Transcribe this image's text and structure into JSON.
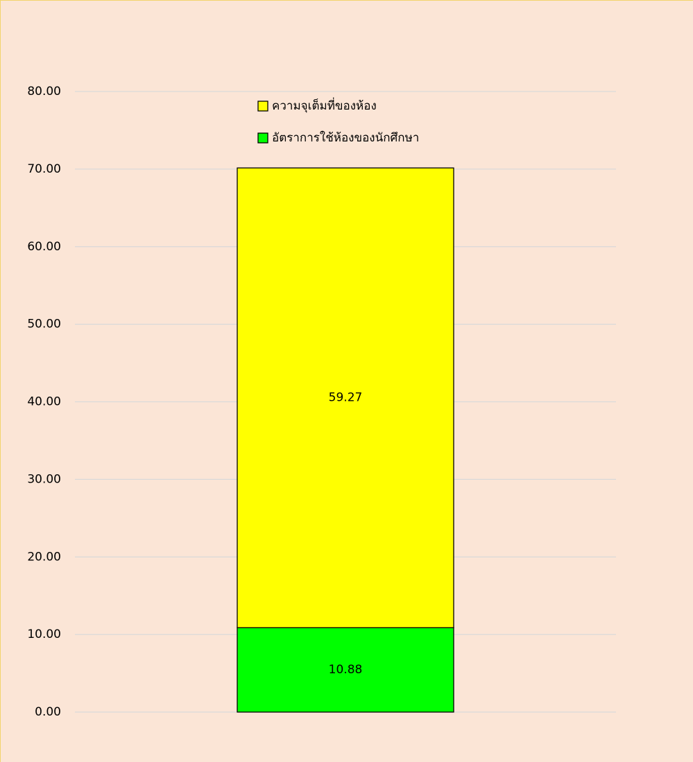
{
  "chart_data": {
    "type": "stacked_bar",
    "categories": [
      null
    ],
    "series": [
      {
        "name": "อัตราการใช้ห้องของนักศึกษา",
        "color": "#00ff00",
        "values": [
          10.88
        ]
      },
      {
        "name": "ความจุเต็มที่ของห้อง",
        "color": "#ffff00",
        "values": [
          59.27
        ]
      }
    ],
    "ylim": [
      0,
      80
    ],
    "yticks": [
      {
        "value": 0,
        "label": "0.00"
      },
      {
        "value": 10,
        "label": "10.00"
      },
      {
        "value": 20,
        "label": "20.00"
      },
      {
        "value": 30,
        "label": "30.00"
      },
      {
        "value": 40,
        "label": "40.00"
      },
      {
        "value": 50,
        "label": "50.00"
      },
      {
        "value": 60,
        "label": "60.00"
      },
      {
        "value": 70,
        "label": "70.00"
      },
      {
        "value": 80,
        "label": "80.00"
      }
    ],
    "grid": true,
    "legend": "top"
  }
}
